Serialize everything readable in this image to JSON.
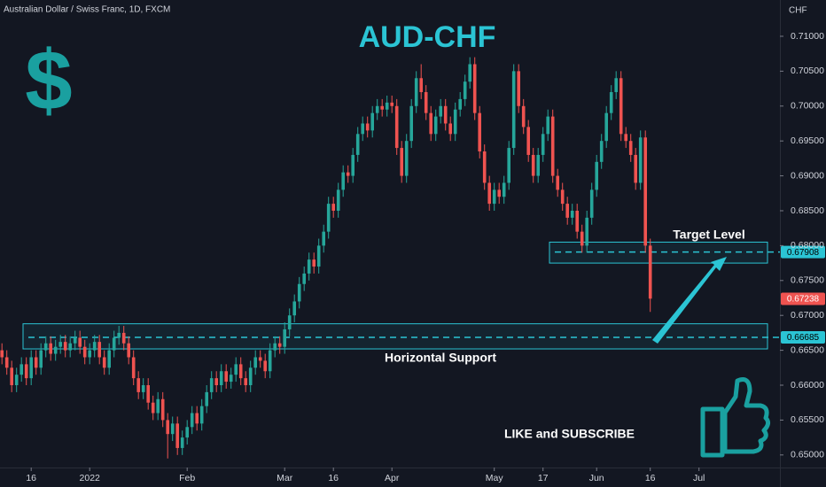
{
  "chart_data": {
    "type": "candlestick",
    "header": "Australian Dollar / Swiss Franc, 1D, FXCM",
    "title": "AUD-CHF",
    "symbol": "$",
    "axis_label": "CHF",
    "call_to_action": "LIKE and SUBSCRIBE",
    "up_color": "#26a69a",
    "down_color": "#ef5350",
    "accent_color": "#2bc4d4",
    "grid": false,
    "ylim": [
      0.6482,
      0.7152
    ],
    "yticks": [
      {
        "value": 0.65,
        "label": "0.65000"
      },
      {
        "value": 0.655,
        "label": "0.65500"
      },
      {
        "value": 0.66,
        "label": "0.66000"
      },
      {
        "value": 0.665,
        "label": "0.66500"
      },
      {
        "value": 0.67,
        "label": "0.67000"
      },
      {
        "value": 0.675,
        "label": "0.67500"
      },
      {
        "value": 0.68,
        "label": "0.68000"
      },
      {
        "value": 0.685,
        "label": "0.68500"
      },
      {
        "value": 0.69,
        "label": "0.69000"
      },
      {
        "value": 0.695,
        "label": "0.69500"
      },
      {
        "value": 0.7,
        "label": "0.70000"
      },
      {
        "value": 0.705,
        "label": "0.70500"
      },
      {
        "value": 0.71,
        "label": "0.71000"
      }
    ],
    "xlim": [
      -0.4,
      159.6
    ],
    "xticks": [
      {
        "value": 6,
        "label": "16"
      },
      {
        "value": 18,
        "label": "2022"
      },
      {
        "value": 38,
        "label": "Feb"
      },
      {
        "value": 58,
        "label": "Mar"
      },
      {
        "value": 68,
        "label": "16"
      },
      {
        "value": 80,
        "label": "Apr"
      },
      {
        "value": 101,
        "label": "May"
      },
      {
        "value": 111,
        "label": "17"
      },
      {
        "value": 122,
        "label": "Jun"
      },
      {
        "value": 133,
        "label": "16"
      },
      {
        "value": 143,
        "label": "Jul"
      }
    ],
    "target": {
      "label": "Target Level",
      "value": 0.67908,
      "zone": [
        0.6775,
        0.6805
      ]
    },
    "support": {
      "label": "Horizontal Support",
      "value": 0.66685,
      "zone": [
        0.6652,
        0.6688
      ]
    },
    "last_price": 0.67238,
    "open": [
      0.665,
      0.664,
      0.6625,
      0.66,
      0.6615,
      0.663,
      0.661,
      0.664,
      0.6625,
      0.665,
      0.666,
      0.6645,
      0.6655,
      0.6662,
      0.665,
      0.666,
      0.6668,
      0.6655,
      0.664,
      0.665,
      0.6662,
      0.664,
      0.6625,
      0.665,
      0.6668,
      0.6675,
      0.666,
      0.664,
      0.661,
      0.659,
      0.66,
      0.6575,
      0.656,
      0.658,
      0.655,
      0.653,
      0.6545,
      0.651,
      0.6525,
      0.654,
      0.656,
      0.6545,
      0.657,
      0.659,
      0.661,
      0.66,
      0.662,
      0.6605,
      0.6615,
      0.663,
      0.661,
      0.66,
      0.6625,
      0.664,
      0.6635,
      0.662,
      0.665,
      0.666,
      0.6655,
      0.668,
      0.67,
      0.672,
      0.6745,
      0.676,
      0.678,
      0.677,
      0.68,
      0.682,
      0.686,
      0.685,
      0.688,
      0.6905,
      0.69,
      0.693,
      0.696,
      0.6975,
      0.6965,
      0.699,
      0.7,
      0.6995,
      0.7005,
      0.7,
      0.694,
      0.69,
      0.695,
      0.7,
      0.704,
      0.702,
      0.699,
      0.696,
      0.6985,
      0.7,
      0.6975,
      0.696,
      0.6995,
      0.701,
      0.7035,
      0.706,
      0.699,
      0.6935,
      0.689,
      0.686,
      0.688,
      0.687,
      0.689,
      0.694,
      0.705,
      0.7,
      0.697,
      0.693,
      0.69,
      0.693,
      0.696,
      0.6985,
      0.69,
      0.688,
      0.686,
      0.684,
      0.685,
      0.682,
      0.68,
      0.684,
      0.688,
      0.692,
      0.695,
      0.699,
      0.702,
      0.704,
      0.696,
      0.695,
      0.693,
      0.689,
      0.6955,
      0.68
    ],
    "high": [
      0.666,
      0.665,
      0.6635,
      0.6625,
      0.664,
      0.664,
      0.665,
      0.665,
      0.666,
      0.667,
      0.667,
      0.6665,
      0.6672,
      0.6672,
      0.667,
      0.6678,
      0.6678,
      0.6665,
      0.666,
      0.6672,
      0.6672,
      0.665,
      0.666,
      0.6678,
      0.6685,
      0.6685,
      0.667,
      0.665,
      0.662,
      0.661,
      0.661,
      0.6585,
      0.659,
      0.659,
      0.656,
      0.6555,
      0.6555,
      0.6535,
      0.655,
      0.657,
      0.657,
      0.658,
      0.66,
      0.662,
      0.662,
      0.663,
      0.663,
      0.6625,
      0.664,
      0.664,
      0.662,
      0.6635,
      0.665,
      0.665,
      0.6645,
      0.666,
      0.667,
      0.667,
      0.669,
      0.671,
      0.673,
      0.6755,
      0.677,
      0.679,
      0.679,
      0.681,
      0.683,
      0.687,
      0.687,
      0.689,
      0.6915,
      0.6915,
      0.694,
      0.697,
      0.6985,
      0.6985,
      0.7,
      0.701,
      0.701,
      0.7015,
      0.7015,
      0.701,
      0.695,
      0.696,
      0.701,
      0.705,
      0.706,
      0.703,
      0.7,
      0.6995,
      0.701,
      0.701,
      0.6985,
      0.7005,
      0.702,
      0.7045,
      0.707,
      0.707,
      0.7,
      0.6945,
      0.69,
      0.689,
      0.689,
      0.69,
      0.695,
      0.706,
      0.706,
      0.701,
      0.698,
      0.694,
      0.694,
      0.697,
      0.6995,
      0.6995,
      0.691,
      0.689,
      0.687,
      0.686,
      0.686,
      0.683,
      0.685,
      0.689,
      0.693,
      0.696,
      0.7,
      0.703,
      0.705,
      0.705,
      0.697,
      0.696,
      0.694,
      0.6965,
      0.6965,
      0.681
    ],
    "low": [
      0.663,
      0.6615,
      0.659,
      0.659,
      0.6605,
      0.66,
      0.66,
      0.6615,
      0.6615,
      0.664,
      0.6635,
      0.6635,
      0.6645,
      0.664,
      0.664,
      0.665,
      0.6645,
      0.663,
      0.663,
      0.664,
      0.663,
      0.6615,
      0.6615,
      0.664,
      0.6658,
      0.665,
      0.663,
      0.66,
      0.658,
      0.658,
      0.6565,
      0.655,
      0.655,
      0.654,
      0.6495,
      0.652,
      0.65,
      0.65,
      0.6515,
      0.653,
      0.6535,
      0.6535,
      0.656,
      0.658,
      0.659,
      0.659,
      0.6595,
      0.6595,
      0.6605,
      0.66,
      0.659,
      0.659,
      0.6615,
      0.6625,
      0.661,
      0.661,
      0.664,
      0.6645,
      0.6645,
      0.667,
      0.669,
      0.671,
      0.6735,
      0.675,
      0.676,
      0.676,
      0.679,
      0.681,
      0.684,
      0.684,
      0.687,
      0.689,
      0.689,
      0.692,
      0.695,
      0.6955,
      0.6955,
      0.698,
      0.6985,
      0.6985,
      0.699,
      0.693,
      0.689,
      0.689,
      0.694,
      0.699,
      0.701,
      0.698,
      0.695,
      0.695,
      0.6975,
      0.6965,
      0.695,
      0.695,
      0.6985,
      0.7,
      0.7025,
      0.698,
      0.6925,
      0.688,
      0.685,
      0.685,
      0.686,
      0.686,
      0.688,
      0.693,
      0.699,
      0.696,
      0.692,
      0.689,
      0.689,
      0.692,
      0.695,
      0.689,
      0.687,
      0.685,
      0.683,
      0.683,
      0.681,
      0.679,
      0.679,
      0.683,
      0.687,
      0.691,
      0.694,
      0.698,
      0.701,
      0.695,
      0.694,
      0.692,
      0.688,
      0.688,
      0.679,
      0.6705
    ],
    "close": [
      0.664,
      0.6625,
      0.66,
      0.6615,
      0.663,
      0.661,
      0.664,
      0.6625,
      0.665,
      0.666,
      0.6645,
      0.6655,
      0.6662,
      0.665,
      0.666,
      0.6668,
      0.6655,
      0.664,
      0.665,
      0.6662,
      0.664,
      0.6625,
      0.665,
      0.6668,
      0.6675,
      0.666,
      0.664,
      0.661,
      0.659,
      0.66,
      0.6575,
      0.656,
      0.658,
      0.655,
      0.653,
      0.6545,
      0.651,
      0.6525,
      0.654,
      0.656,
      0.6545,
      0.657,
      0.659,
      0.661,
      0.66,
      0.662,
      0.6605,
      0.6615,
      0.663,
      0.661,
      0.66,
      0.6625,
      0.664,
      0.6635,
      0.662,
      0.665,
      0.666,
      0.6655,
      0.668,
      0.67,
      0.672,
      0.6745,
      0.676,
      0.678,
      0.677,
      0.68,
      0.682,
      0.686,
      0.685,
      0.688,
      0.6905,
      0.69,
      0.693,
      0.696,
      0.6975,
      0.6965,
      0.699,
      0.7,
      0.6995,
      0.7005,
      0.7,
      0.694,
      0.69,
      0.695,
      0.7,
      0.704,
      0.702,
      0.699,
      0.696,
      0.6985,
      0.7,
      0.6975,
      0.696,
      0.6995,
      0.701,
      0.7035,
      0.706,
      0.699,
      0.6935,
      0.689,
      0.686,
      0.688,
      0.687,
      0.689,
      0.694,
      0.705,
      0.7,
      0.697,
      0.693,
      0.69,
      0.693,
      0.696,
      0.6985,
      0.69,
      0.688,
      0.686,
      0.684,
      0.685,
      0.682,
      0.68,
      0.684,
      0.688,
      0.692,
      0.695,
      0.699,
      0.702,
      0.704,
      0.696,
      0.695,
      0.693,
      0.689,
      0.6955,
      0.68,
      0.6724
    ]
  }
}
